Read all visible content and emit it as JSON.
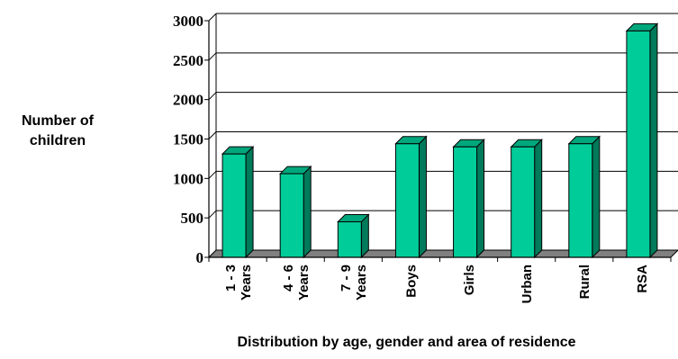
{
  "chart_data": {
    "type": "bar",
    "categories": [
      [
        "1 - 3",
        "Years"
      ],
      [
        "4 - 6",
        "Years"
      ],
      [
        "7 - 9",
        "Years"
      ],
      [
        "Boys"
      ],
      [
        "Girls"
      ],
      [
        "Urban"
      ],
      [
        "Rural"
      ],
      [
        "RSA"
      ]
    ],
    "values": [
      1310,
      1060,
      450,
      1440,
      1400,
      1400,
      1440,
      2870
    ],
    "ylim": [
      0,
      3000
    ],
    "yticks": [
      0,
      500,
      1000,
      1500,
      2000,
      2500,
      3000
    ],
    "ylabel": [
      "Number of",
      "children"
    ],
    "xlabel": "Distribution by age, gender and area of residence",
    "grid": true,
    "style": "3d-bar",
    "colors": {
      "bar_front": "#00cc99",
      "bar_side": "#007a5a",
      "bar_top": "#00a67c",
      "floor": "#808080",
      "grid": "#000000"
    }
  }
}
